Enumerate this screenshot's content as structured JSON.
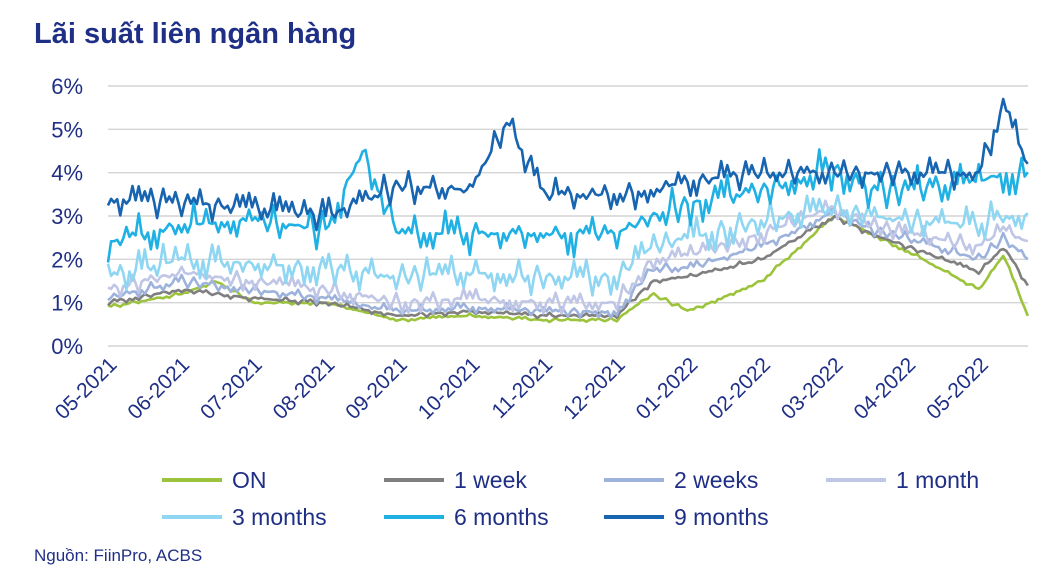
{
  "title": "Lãi suất liên ngân hàng",
  "source": "Nguồn: FiinPro, ACBS",
  "chart_data": {
    "type": "line",
    "title": "Lãi suất liên ngân hàng",
    "y_unit": "%",
    "ylim": [
      0,
      6
    ],
    "yticks": [
      "0%",
      "1%",
      "2%",
      "3%",
      "4%",
      "5%",
      "6%"
    ],
    "xticks": [
      "05-2021",
      "06-2021",
      "07-2021",
      "08-2021",
      "09-2021",
      "10-2021",
      "11-2021",
      "12-2021",
      "01-2022",
      "02-2022",
      "03-2022",
      "04-2022",
      "05-2022"
    ],
    "grid": true,
    "legend_position": "bottom",
    "series": [
      {
        "name": "ON",
        "color": "#9cc33c",
        "points": [
          [
            "05-2021",
            0.9
          ],
          [
            "06-2021",
            1.2
          ],
          [
            "06-2021",
            1.5
          ],
          [
            "07-2021",
            1.0
          ],
          [
            "08-2021",
            1.0
          ],
          [
            "09-2021",
            0.6
          ],
          [
            "10-2021",
            0.7
          ],
          [
            "11-2021",
            0.6
          ],
          [
            "12-2021",
            0.6
          ],
          [
            "12-2021",
            1.2
          ],
          [
            "01-2022",
            0.8
          ],
          [
            "02-2022",
            1.5
          ],
          [
            "03-2022",
            3.0
          ],
          [
            "03-2022",
            2.6
          ],
          [
            "04-2022",
            2.2
          ],
          [
            "05-2022",
            1.3
          ],
          [
            "05-2022",
            2.1
          ],
          [
            "05-2022",
            0.7
          ]
        ]
      },
      {
        "name": "1 week",
        "color": "#7f7f7f",
        "points": [
          [
            "05-2021",
            1.0
          ],
          [
            "06-2021",
            1.3
          ],
          [
            "07-2021",
            1.1
          ],
          [
            "08-2021",
            1.0
          ],
          [
            "09-2021",
            0.7
          ],
          [
            "10-2021",
            0.8
          ],
          [
            "11-2021",
            0.7
          ],
          [
            "12-2021",
            0.7
          ],
          [
            "12-2021",
            1.5
          ],
          [
            "01-2022",
            1.6
          ],
          [
            "02-2022",
            2.0
          ],
          [
            "03-2022",
            3.0
          ],
          [
            "03-2022",
            2.6
          ],
          [
            "04-2022",
            2.3
          ],
          [
            "05-2022",
            1.7
          ],
          [
            "05-2022",
            2.3
          ],
          [
            "05-2022",
            1.4
          ]
        ]
      },
      {
        "name": "2 weeks",
        "color": "#9db3dc",
        "points": [
          [
            "05-2021",
            1.1
          ],
          [
            "06-2021",
            1.5
          ],
          [
            "07-2021",
            1.3
          ],
          [
            "08-2021",
            1.1
          ],
          [
            "09-2021",
            0.8
          ],
          [
            "10-2021",
            0.9
          ],
          [
            "11-2021",
            0.8
          ],
          [
            "12-2021",
            0.8
          ],
          [
            "12-2021",
            1.8
          ],
          [
            "01-2022",
            1.8
          ],
          [
            "02-2022",
            2.3
          ],
          [
            "03-2022",
            3.1
          ],
          [
            "03-2022",
            2.7
          ],
          [
            "04-2022",
            2.5
          ],
          [
            "05-2022",
            2.0
          ],
          [
            "05-2022",
            2.5
          ],
          [
            "05-2022",
            2.0
          ]
        ]
      },
      {
        "name": "1 month",
        "color": "#bfc6e6",
        "points": [
          [
            "05-2021",
            1.3
          ],
          [
            "06-2021",
            1.7
          ],
          [
            "07-2021",
            1.5
          ],
          [
            "08-2021",
            1.3
          ],
          [
            "09-2021",
            1.0
          ],
          [
            "10-2021",
            1.1
          ],
          [
            "11-2021",
            1.0
          ],
          [
            "12-2021",
            1.0
          ],
          [
            "12-2021",
            2.0
          ],
          [
            "01-2022",
            2.1
          ],
          [
            "02-2022",
            2.6
          ],
          [
            "03-2022",
            3.2
          ],
          [
            "03-2022",
            2.8
          ],
          [
            "04-2022",
            2.6
          ],
          [
            "05-2022",
            2.3
          ],
          [
            "05-2022",
            2.7
          ],
          [
            "05-2022",
            2.4
          ]
        ]
      },
      {
        "name": "3 months",
        "color": "#8fd6f2",
        "points": [
          [
            "05-2021",
            1.6
          ],
          [
            "06-2021",
            2.0
          ],
          [
            "07-2021",
            1.9
          ],
          [
            "08-2021",
            1.8
          ],
          [
            "09-2021",
            1.6
          ],
          [
            "10-2021",
            1.7
          ],
          [
            "11-2021",
            1.6
          ],
          [
            "12-2021",
            1.6
          ],
          [
            "12-2021",
            2.3
          ],
          [
            "01-2022",
            2.5
          ],
          [
            "02-2022",
            2.9
          ],
          [
            "03-2022",
            3.2
          ],
          [
            "03-2022",
            3.0
          ],
          [
            "04-2022",
            2.9
          ],
          [
            "05-2022",
            2.8
          ],
          [
            "05-2022",
            3.0
          ],
          [
            "05-2022",
            3.0
          ]
        ]
      },
      {
        "name": "6 months",
        "color": "#1fb0e4",
        "points": [
          [
            "05-2021",
            2.4
          ],
          [
            "06-2021",
            2.8
          ],
          [
            "07-2021",
            2.9
          ],
          [
            "08-2021",
            2.7
          ],
          [
            "08-2021",
            4.5
          ],
          [
            "09-2021",
            2.6
          ],
          [
            "10-2021",
            2.6
          ],
          [
            "11-2021",
            2.6
          ],
          [
            "12-2021",
            2.6
          ],
          [
            "12-2021",
            3.0
          ],
          [
            "01-2022",
            3.3
          ],
          [
            "02-2022",
            3.6
          ],
          [
            "03-2022",
            4.1
          ],
          [
            "03-2022",
            3.6
          ],
          [
            "04-2022",
            3.6
          ],
          [
            "05-2022",
            3.8
          ],
          [
            "05-2022",
            4.0
          ],
          [
            "05-2022",
            3.9
          ]
        ]
      },
      {
        "name": "9 months",
        "color": "#1764b0",
        "points": [
          [
            "05-2021",
            3.4
          ],
          [
            "06-2021",
            3.3
          ],
          [
            "07-2021",
            3.2
          ],
          [
            "08-2021",
            3.0
          ],
          [
            "09-2021",
            3.7
          ],
          [
            "10-2021",
            3.6
          ],
          [
            "10-2021",
            5.2
          ],
          [
            "11-2021",
            3.5
          ],
          [
            "12-2021",
            3.5
          ],
          [
            "12-2021",
            3.6
          ],
          [
            "01-2022",
            3.8
          ],
          [
            "02-2022",
            4.0
          ],
          [
            "03-2022",
            4.0
          ],
          [
            "04-2022",
            4.0
          ],
          [
            "05-2022",
            4.0
          ],
          [
            "05-2022",
            5.6
          ],
          [
            "05-2022",
            4.1
          ]
        ]
      }
    ]
  }
}
